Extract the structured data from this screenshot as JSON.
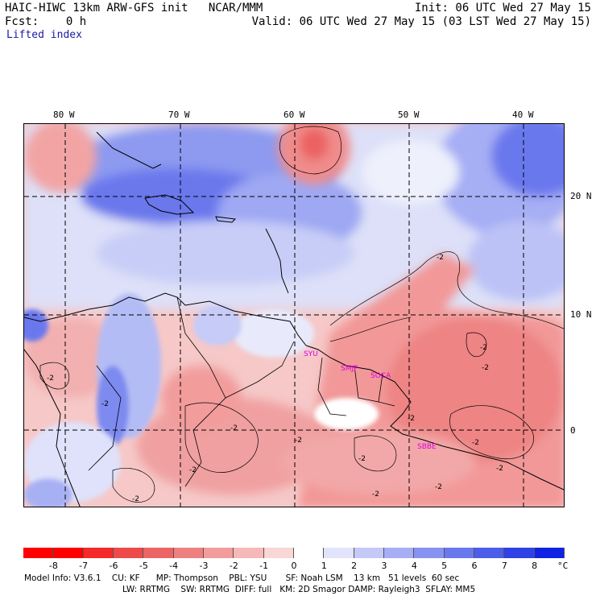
{
  "header": {
    "left_line1": "HAIC-HIWC 13km ARW-GFS init   NCAR/MMM",
    "left_line2": "Fcst:    0 h",
    "right_line1": "Init: 06 UTC Wed 27 May 15",
    "right_line2": "Valid: 06 UTC Wed 27 May 15 (03 LST Wed 27 May 15)",
    "field_name": "Lifted index"
  },
  "map": {
    "lon_labels": [
      "80 W",
      "70 W",
      "60 W",
      "50 W",
      "40 W"
    ],
    "lat_labels": [
      "20 N",
      "10 N",
      "0"
    ],
    "contour_labels": [
      "-2",
      "-2",
      "-2",
      "-2",
      "-2",
      "-2",
      "-2",
      "-2",
      "-2",
      "-2",
      "-2",
      "-2",
      "-2",
      "-2",
      "-2"
    ],
    "stations": [
      "SYU",
      "SMJP",
      "SOCA",
      "SBBE"
    ],
    "colors": {
      "unstable_strong": "#ff2020",
      "unstable_mid": "#f08080",
      "unstable_weak": "#f6c6c6",
      "neutral": "#ffffff",
      "stable_weak": "#d8dcf8",
      "stable_mid": "#7f8ef0",
      "stable_strong": "#1a22e6"
    }
  },
  "colorbar": {
    "tick_labels": [
      "-8",
      "-7",
      "-6",
      "-5",
      "-4",
      "-3",
      "-2",
      "-1",
      "0",
      "1",
      "2",
      "3",
      "4",
      "5",
      "6",
      "7",
      "8"
    ],
    "unit": "°C",
    "colors": [
      "#ff0000",
      "#f52a2a",
      "#ee4a4a",
      "#ec6464",
      "#ef8080",
      "#f29c9c",
      "#f6b8b8",
      "#fad6d6",
      "#ffffff",
      "#e2e4fb",
      "#c4c9f8",
      "#a6aef4",
      "#8893f1",
      "#6a78ed",
      "#4c5dea",
      "#2e42e6",
      "#1023e2"
    ]
  },
  "footer": {
    "line1": "Model Info: V3.6.1    CU: KF      MP: Thompson    PBL: YSU       SF: Noah LSM    13 km   51 levels  60 sec",
    "line2": "LW: RRTMG    SW: RRTMG  DIFF: full   KM: 2D Smagor DAMP: Rayleigh3  SFLAY: MM5"
  }
}
